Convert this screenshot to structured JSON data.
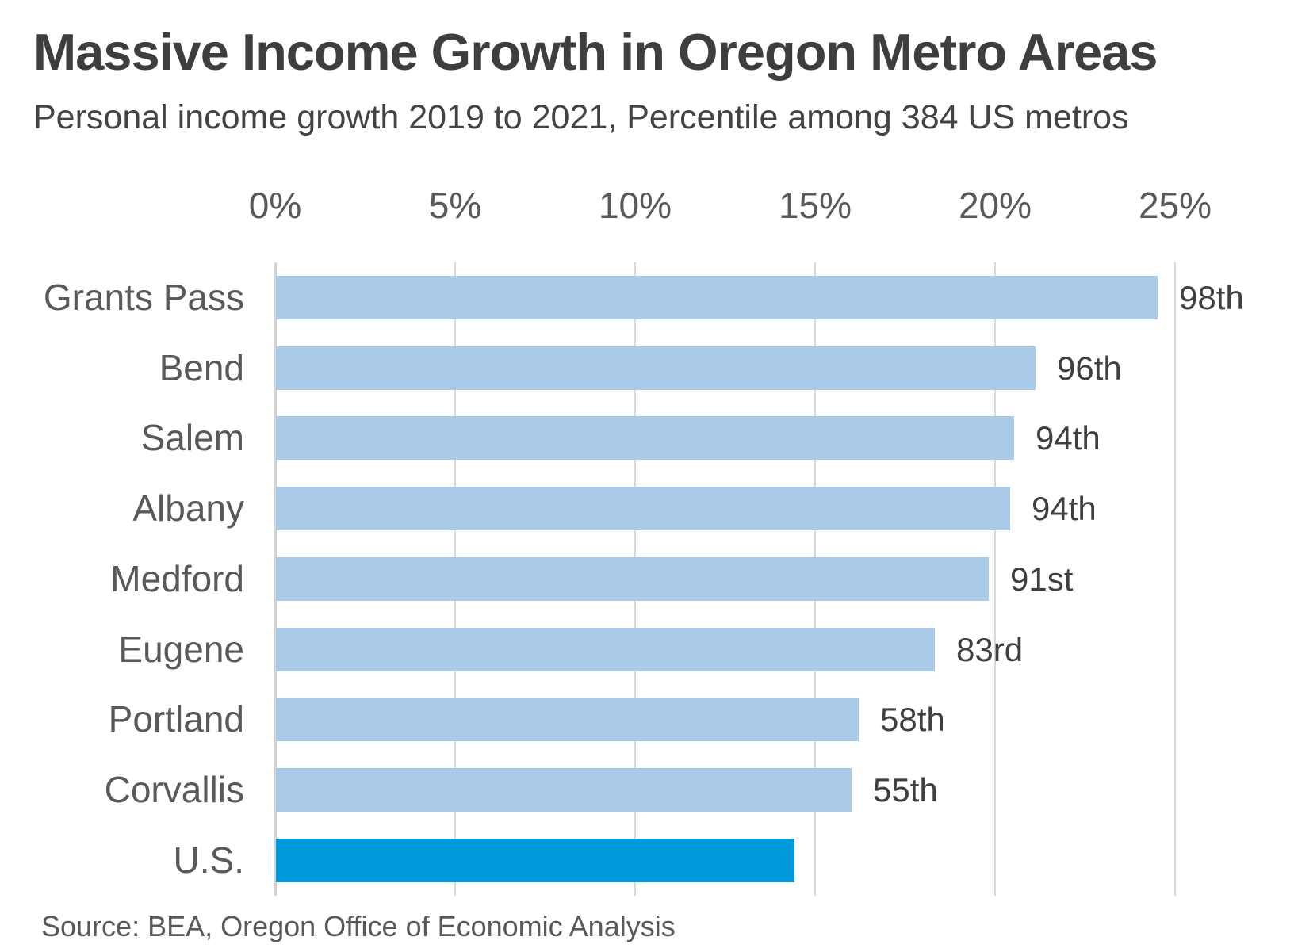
{
  "title": "Massive Income Growth in Oregon Metro Areas",
  "subtitle": "Personal income growth 2019 to 2021, Percentile among 384 US metros",
  "source": "Source: BEA, Oregon Office of Economic Analysis",
  "colors": {
    "bar": "#a9cbe8",
    "highlight_bar": "#009adb",
    "gridline": "#d9d9d9",
    "title_text": "#3e3e3e",
    "axis_text": "#595959",
    "value_text": "#3f3f3f"
  },
  "chart_data": {
    "type": "bar",
    "orientation": "horizontal",
    "title": "Massive Income Growth in Oregon Metro Areas",
    "subtitle": "Personal income growth 2019 to 2021, Percentile among 384 US metros",
    "categories": [
      "Grants Pass",
      "Bend",
      "Salem",
      "Albany",
      "Medford",
      "Eugene",
      "Portland",
      "Corvallis",
      "U.S."
    ],
    "values": [
      24.5,
      21.1,
      20.5,
      20.4,
      19.8,
      18.3,
      16.2,
      16.0,
      14.4
    ],
    "value_unit": "percent",
    "bar_labels": [
      "98th",
      "96th",
      "94th",
      "94th",
      "91st",
      "83rd",
      "58th",
      "55th",
      ""
    ],
    "highlight_category": "U.S.",
    "x_ticks": [
      "0%",
      "5%",
      "10%",
      "15%",
      "20%",
      "25%"
    ],
    "x_tick_values": [
      0,
      5,
      10,
      15,
      20,
      25
    ],
    "xlim": [
      0,
      26.5
    ],
    "grid": "vertical-only",
    "axis_position": "top",
    "legend": "none"
  }
}
